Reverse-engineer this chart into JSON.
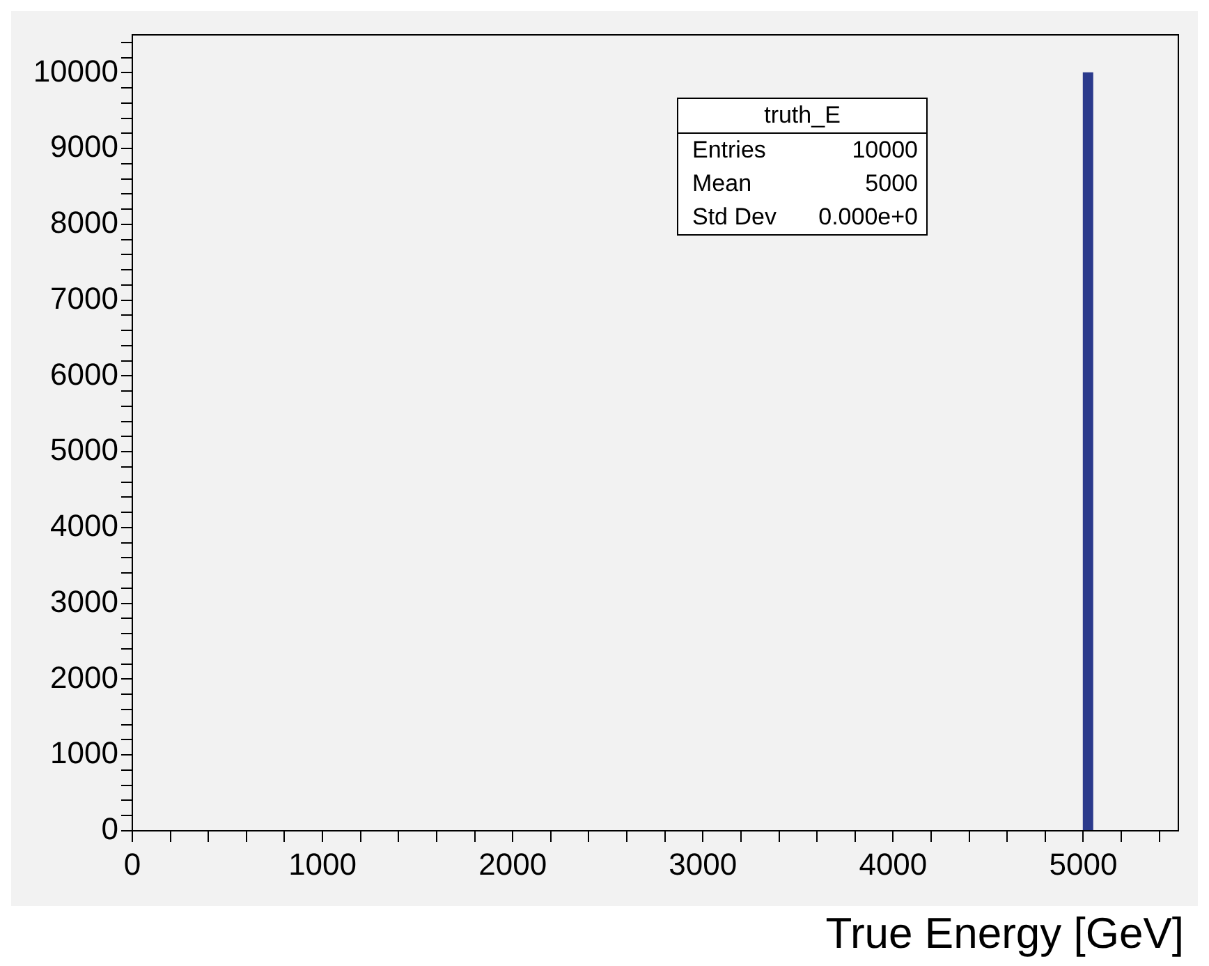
{
  "chart_data": {
    "type": "histogram",
    "xlabel": "True Energy [GeV]",
    "bins": [
      5000,
      5050
    ],
    "values": [
      10000
    ],
    "color": "#2b3a8c",
    "xlim": [
      0,
      5500
    ],
    "xticks": [
      0,
      {
        "value": 200,
        "label": null
      },
      {
        "value": 400,
        "label": null
      },
      {
        "value": 600,
        "label": null
      },
      {
        "value": 800,
        "label": null
      },
      1000,
      {
        "value": 1200,
        "label": null
      },
      {
        "value": 1400,
        "label": null
      },
      {
        "value": 1600,
        "label": null
      },
      {
        "value": 1800,
        "label": null
      },
      2000,
      {
        "value": 2200,
        "label": null
      },
      {
        "value": 2400,
        "label": null
      },
      {
        "value": 2600,
        "label": null
      },
      {
        "value": 2800,
        "label": null
      },
      3000,
      {
        "value": 3200,
        "label": null
      },
      {
        "value": 3400,
        "label": null
      },
      {
        "value": 3600,
        "label": null
      },
      {
        "value": 3800,
        "label": null
      },
      4000,
      {
        "value": 4200,
        "label": null
      },
      {
        "value": 4400,
        "label": null
      },
      {
        "value": 4600,
        "label": null
      },
      {
        "value": 4800,
        "label": null
      },
      5000,
      {
        "value": 5200,
        "label": null
      },
      {
        "value": 5400,
        "label": null
      }
    ],
    "ylim": [
      0,
      10500
    ],
    "yticks": [
      0,
      {
        "value": 200,
        "label": null
      },
      {
        "value": 400,
        "label": null
      },
      {
        "value": 600,
        "label": null
      },
      {
        "value": 800,
        "label": null
      },
      1000,
      {
        "value": 1200,
        "label": null
      },
      {
        "value": 1400,
        "label": null
      },
      {
        "value": 1600,
        "label": null
      },
      {
        "value": 1800,
        "label": null
      },
      2000,
      {
        "value": 2200,
        "label": null
      },
      {
        "value": 2400,
        "label": null
      },
      {
        "value": 2600,
        "label": null
      },
      {
        "value": 2800,
        "label": null
      },
      3000,
      {
        "value": 3200,
        "label": null
      },
      {
        "value": 3400,
        "label": null
      },
      {
        "value": 3600,
        "label": null
      },
      {
        "value": 3800,
        "label": null
      },
      4000,
      {
        "value": 4200,
        "label": null
      },
      {
        "value": 4400,
        "label": null
      },
      {
        "value": 4600,
        "label": null
      },
      {
        "value": 4800,
        "label": null
      },
      5000,
      {
        "value": 5200,
        "label": null
      },
      {
        "value": 5400,
        "label": null
      },
      {
        "value": 5600,
        "label": null
      },
      {
        "value": 5800,
        "label": null
      },
      6000,
      {
        "value": 6200,
        "label": null
      },
      {
        "value": 6400,
        "label": null
      },
      {
        "value": 6600,
        "label": null
      },
      {
        "value": 6800,
        "label": null
      },
      7000,
      {
        "value": 7200,
        "label": null
      },
      {
        "value": 7400,
        "label": null
      },
      {
        "value": 7600,
        "label": null
      },
      {
        "value": 7800,
        "label": null
      },
      8000,
      {
        "value": 8200,
        "label": null
      },
      {
        "value": 8400,
        "label": null
      },
      {
        "value": 8600,
        "label": null
      },
      {
        "value": 8800,
        "label": null
      },
      9000,
      {
        "value": 9200,
        "label": null
      },
      {
        "value": 9400,
        "label": null
      },
      {
        "value": 9600,
        "label": null
      },
      {
        "value": 9800,
        "label": null
      },
      10000,
      {
        "value": 10200,
        "label": null
      },
      {
        "value": 10400,
        "label": null
      }
    ],
    "annotations": [
      "truth_E",
      "Entries",
      "10000",
      "Mean",
      "5000",
      "Std Dev",
      "0.000e+0"
    ]
  }
}
